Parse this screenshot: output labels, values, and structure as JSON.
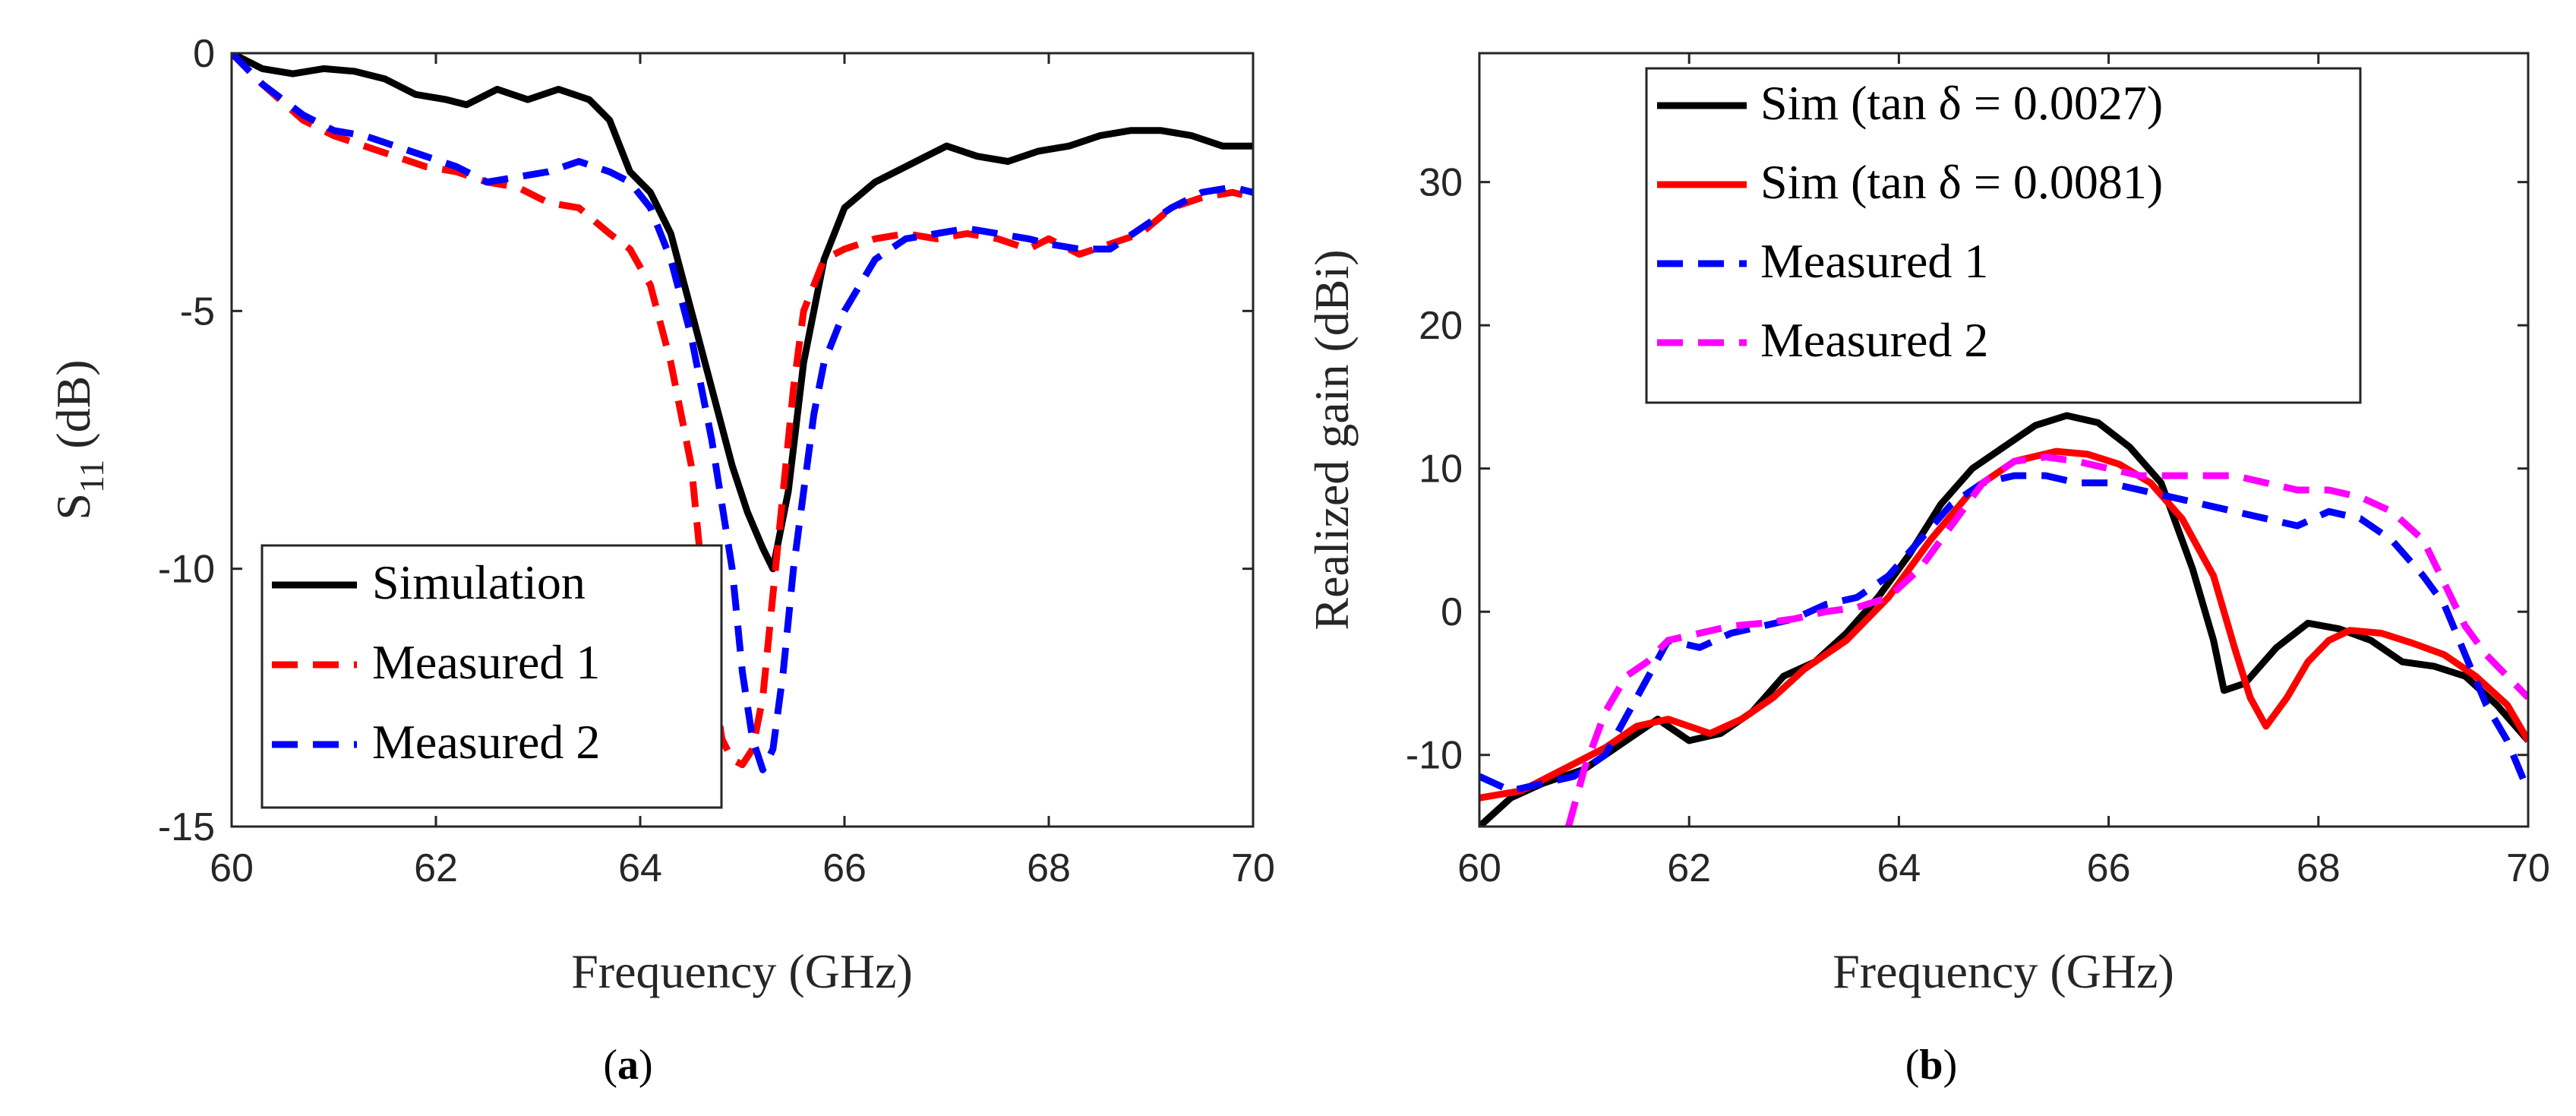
{
  "chart_data": [
    {
      "type": "line",
      "panel_label": "a",
      "xlabel": "Frequency (GHz)",
      "ylabel": "S",
      "ylabel_sub": "11",
      "ylabel_unit": "(dB)",
      "xlim": [
        60,
        70
      ],
      "ylim": [
        -15,
        0
      ],
      "xticks": [
        60,
        62,
        64,
        66,
        68,
        70
      ],
      "yticks": [
        0,
        -5,
        -10,
        -15
      ],
      "ytick_labels": [
        "0",
        "-5",
        "-10",
        "-15"
      ],
      "legend_position": "bottom-left",
      "series": [
        {
          "name": "Simulation",
          "color": "#000000",
          "dash": "solid",
          "x": [
            60,
            60.3,
            60.6,
            60.9,
            61.2,
            61.5,
            61.8,
            62.1,
            62.3,
            62.6,
            62.9,
            63.2,
            63.5,
            63.7,
            63.9,
            64.1,
            64.3,
            64.5,
            64.7,
            64.9,
            65.05,
            65.2,
            65.3,
            65.45,
            65.6,
            65.8,
            66.0,
            66.3,
            66.6,
            66.8,
            67.0,
            67.3,
            67.6,
            67.9,
            68.2,
            68.5,
            68.8,
            69.1,
            69.4,
            69.7,
            70
          ],
          "y": [
            0,
            -0.3,
            -0.4,
            -0.3,
            -0.35,
            -0.5,
            -0.8,
            -0.9,
            -1.0,
            -0.7,
            -0.9,
            -0.7,
            -0.9,
            -1.3,
            -2.3,
            -2.7,
            -3.5,
            -5.0,
            -6.5,
            -8.0,
            -8.9,
            -9.6,
            -10.0,
            -8.5,
            -6.0,
            -4.0,
            -3.0,
            -2.5,
            -2.2,
            -2.0,
            -1.8,
            -2.0,
            -2.1,
            -1.9,
            -1.8,
            -1.6,
            -1.5,
            -1.5,
            -1.6,
            -1.8,
            -1.8
          ]
        },
        {
          "name": "Measured 1",
          "color": "#ff0000",
          "dash": "dashed",
          "x": [
            60,
            60.3,
            60.7,
            61.0,
            61.3,
            61.6,
            61.9,
            62.2,
            62.5,
            62.8,
            63.1,
            63.4,
            63.7,
            63.9,
            64.1,
            64.3,
            64.5,
            64.6,
            64.7,
            64.8,
            64.9,
            65.0,
            65.1,
            65.2,
            65.3,
            65.4,
            65.5,
            65.6,
            65.8,
            66.0,
            66.3,
            66.6,
            66.9,
            67.2,
            67.5,
            67.8,
            68.0,
            68.3,
            68.6,
            68.9,
            69.2,
            69.5,
            69.8,
            70
          ],
          "y": [
            0,
            -0.6,
            -1.3,
            -1.6,
            -1.8,
            -2.0,
            -2.2,
            -2.3,
            -2.5,
            -2.6,
            -2.9,
            -3.0,
            -3.5,
            -3.8,
            -4.5,
            -6.0,
            -8.0,
            -10.0,
            -12.0,
            -13.3,
            -13.7,
            -13.8,
            -13.5,
            -12.5,
            -10.5,
            -8.5,
            -6.5,
            -5.0,
            -4.0,
            -3.8,
            -3.6,
            -3.5,
            -3.6,
            -3.5,
            -3.6,
            -3.8,
            -3.6,
            -3.9,
            -3.7,
            -3.5,
            -3.0,
            -2.8,
            -2.7,
            -2.8
          ]
        },
        {
          "name": "Measured 2",
          "color": "#0000ff",
          "dash": "dashed",
          "x": [
            60,
            60.3,
            60.7,
            61.0,
            61.3,
            61.6,
            61.9,
            62.2,
            62.5,
            62.8,
            63.1,
            63.4,
            63.7,
            63.9,
            64.1,
            64.3,
            64.5,
            64.7,
            64.9,
            65.0,
            65.1,
            65.2,
            65.3,
            65.4,
            65.5,
            65.6,
            65.7,
            65.8,
            66.0,
            66.3,
            66.6,
            66.9,
            67.2,
            67.5,
            67.8,
            68.0,
            68.3,
            68.6,
            68.9,
            69.2,
            69.5,
            69.8,
            70
          ],
          "y": [
            0,
            -0.6,
            -1.2,
            -1.5,
            -1.6,
            -1.8,
            -2.0,
            -2.2,
            -2.5,
            -2.4,
            -2.3,
            -2.1,
            -2.3,
            -2.5,
            -3.0,
            -4.0,
            -5.5,
            -7.5,
            -10.0,
            -12.0,
            -13.3,
            -13.9,
            -13.5,
            -12.0,
            -10.0,
            -8.5,
            -7.0,
            -6.0,
            -5.0,
            -4.0,
            -3.6,
            -3.5,
            -3.4,
            -3.5,
            -3.6,
            -3.7,
            -3.8,
            -3.8,
            -3.4,
            -3.0,
            -2.7,
            -2.6,
            -2.7
          ]
        }
      ]
    },
    {
      "type": "line",
      "panel_label": "b",
      "xlabel": "Frequency (GHz)",
      "ylabel": "Realized gain (dBi)",
      "xlim": [
        60,
        70
      ],
      "ylim": [
        -15,
        39
      ],
      "xticks": [
        60,
        62,
        64,
        66,
        68,
        70
      ],
      "yticks": [
        -10,
        0,
        10,
        20,
        30
      ],
      "ytick_labels": [
        "-10",
        "0",
        "10",
        "20",
        "30"
      ],
      "legend_position": "top",
      "series": [
        {
          "name": "Sim (tan δ = 0.0027)",
          "color": "#000000",
          "dash": "solid",
          "x": [
            60,
            60.3,
            60.6,
            61.0,
            61.4,
            61.7,
            62.0,
            62.3,
            62.6,
            62.9,
            63.2,
            63.5,
            63.8,
            64.1,
            64.4,
            64.7,
            65.0,
            65.3,
            65.6,
            65.9,
            66.2,
            66.5,
            66.8,
            67.0,
            67.1,
            67.3,
            67.6,
            67.9,
            68.2,
            68.5,
            68.8,
            69.1,
            69.4,
            69.7,
            70
          ],
          "y": [
            -15,
            -13,
            -12,
            -11,
            -9.0,
            -7.5,
            -9.0,
            -8.5,
            -7.0,
            -4.5,
            -3.5,
            -1.5,
            1.0,
            4.0,
            7.5,
            10.0,
            11.5,
            13.0,
            13.7,
            13.2,
            11.5,
            9.0,
            3.0,
            -2.0,
            -5.5,
            -5.0,
            -2.5,
            -0.8,
            -1.2,
            -2.0,
            -3.5,
            -3.8,
            -4.5,
            -6.5,
            -9.0
          ]
        },
        {
          "name": "Sim (tan δ = 0.0081)",
          "color": "#ff0000",
          "dash": "solid",
          "x": [
            60,
            60.4,
            60.8,
            61.2,
            61.5,
            61.8,
            62.0,
            62.2,
            62.5,
            62.8,
            63.1,
            63.5,
            63.9,
            64.3,
            64.7,
            65.1,
            65.5,
            65.8,
            66.1,
            66.4,
            66.7,
            67.0,
            67.2,
            67.35,
            67.5,
            67.7,
            67.9,
            68.1,
            68.3,
            68.6,
            68.9,
            69.2,
            69.5,
            69.8,
            70
          ],
          "y": [
            -13,
            -12.5,
            -11,
            -9.5,
            -8.0,
            -7.5,
            -8.0,
            -8.5,
            -7.5,
            -6.0,
            -4.0,
            -2.0,
            1.0,
            5.0,
            8.5,
            10.5,
            11.2,
            11.0,
            10.3,
            9.0,
            6.5,
            2.5,
            -2.5,
            -6.0,
            -8.0,
            -6.0,
            -3.5,
            -2.0,
            -1.3,
            -1.5,
            -2.2,
            -3.0,
            -4.5,
            -6.5,
            -9.0
          ]
        },
        {
          "name": "Measured 1",
          "color": "#0000ff",
          "dash": "dashed",
          "x": [
            60,
            60.3,
            60.6,
            60.9,
            61.2,
            61.5,
            61.8,
            62.1,
            62.4,
            62.7,
            63.0,
            63.3,
            63.6,
            63.9,
            64.2,
            64.5,
            64.8,
            65.1,
            65.4,
            65.7,
            66.0,
            66.3,
            66.6,
            66.9,
            67.2,
            67.5,
            67.8,
            68.1,
            68.4,
            68.7,
            69.0,
            69.2,
            69.4,
            69.6,
            69.8,
            70
          ],
          "y": [
            -11.5,
            -12.5,
            -12.0,
            -11.5,
            -10.0,
            -6.0,
            -2.0,
            -2.5,
            -1.5,
            -1.0,
            -0.5,
            0.5,
            1.0,
            2.5,
            5.0,
            7.5,
            9.0,
            9.5,
            9.5,
            9.0,
            9.0,
            8.5,
            8.0,
            7.5,
            7.0,
            6.5,
            6.0,
            7.0,
            6.5,
            5.0,
            2.5,
            0.5,
            -3.0,
            -6.5,
            -9.0,
            -12.5
          ]
        },
        {
          "name": "Measured 2",
          "color": "#ff00ff",
          "dash": "dashed",
          "x": [
            60.85,
            61.0,
            61.2,
            61.4,
            61.6,
            61.8,
            62.1,
            62.4,
            62.7,
            63.0,
            63.3,
            63.6,
            63.9,
            64.2,
            64.5,
            64.8,
            65.1,
            65.4,
            65.7,
            66.0,
            66.3,
            66.6,
            66.9,
            67.2,
            67.5,
            67.8,
            68.1,
            68.4,
            68.7,
            69.0,
            69.2,
            69.4,
            69.6,
            69.8,
            70
          ],
          "y": [
            -15,
            -11.0,
            -7.0,
            -4.5,
            -3.5,
            -2.0,
            -1.5,
            -1.0,
            -0.8,
            -0.5,
            0.0,
            0.3,
            1.0,
            3.0,
            6.0,
            9.0,
            10.5,
            10.8,
            10.5,
            10.0,
            9.5,
            9.5,
            9.5,
            9.5,
            9.0,
            8.5,
            8.5,
            8.0,
            7.0,
            5.0,
            2.0,
            -1.0,
            -3.0,
            -4.5,
            -6.0
          ]
        }
      ]
    }
  ]
}
